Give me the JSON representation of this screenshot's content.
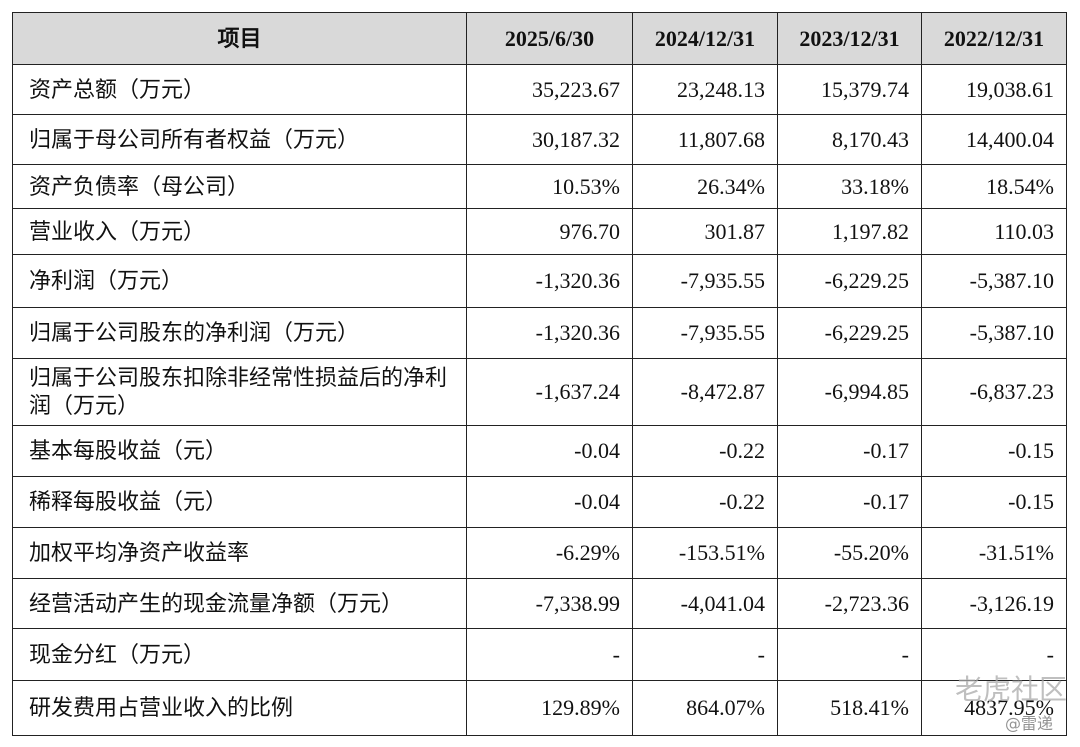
{
  "table": {
    "header": [
      "项目",
      "2025/6/30",
      "2024/12/31",
      "2023/12/31",
      "2022/12/31"
    ],
    "rows": [
      [
        "资产总额（万元）",
        "35,223.67",
        "23,248.13",
        "15,379.74",
        "19,038.61"
      ],
      [
        "归属于母公司所有者权益（万元）",
        "30,187.32",
        "11,807.68",
        "8,170.43",
        "14,400.04"
      ],
      [
        "资产负债率（母公司）",
        "10.53%",
        "26.34%",
        "33.18%",
        "18.54%"
      ],
      [
        "营业收入（万元）",
        "976.70",
        "301.87",
        "1,197.82",
        "110.03"
      ],
      [
        "净利润（万元）",
        "-1,320.36",
        "-7,935.55",
        "-6,229.25",
        "-5,387.10"
      ],
      [
        "归属于公司股东的净利润（万元）",
        "-1,320.36",
        "-7,935.55",
        "-6,229.25",
        "-5,387.10"
      ],
      [
        "归属于公司股东扣除非经常性损益后的净利润（万元）",
        "-1,637.24",
        "-8,472.87",
        "-6,994.85",
        "-6,837.23"
      ],
      [
        "基本每股收益（元）",
        "-0.04",
        "-0.22",
        "-0.17",
        "-0.15"
      ],
      [
        "稀释每股收益（元）",
        "-0.04",
        "-0.22",
        "-0.17",
        "-0.15"
      ],
      [
        "加权平均净资产收益率",
        "-6.29%",
        "-153.51%",
        "-55.20%",
        "-31.51%"
      ],
      [
        "经营活动产生的现金流量净额（万元）",
        "-7,338.99",
        "-4,041.04",
        "-2,723.36",
        "-3,126.19"
      ],
      [
        "现金分红（万元）",
        "-",
        "-",
        "-",
        "-"
      ],
      [
        "研发费用占营业收入的比例",
        "129.89%",
        "864.07%",
        "518.41%",
        "4837.95%"
      ]
    ]
  },
  "watermark": {
    "brand": "老虎社区",
    "handle": "@雷递"
  }
}
